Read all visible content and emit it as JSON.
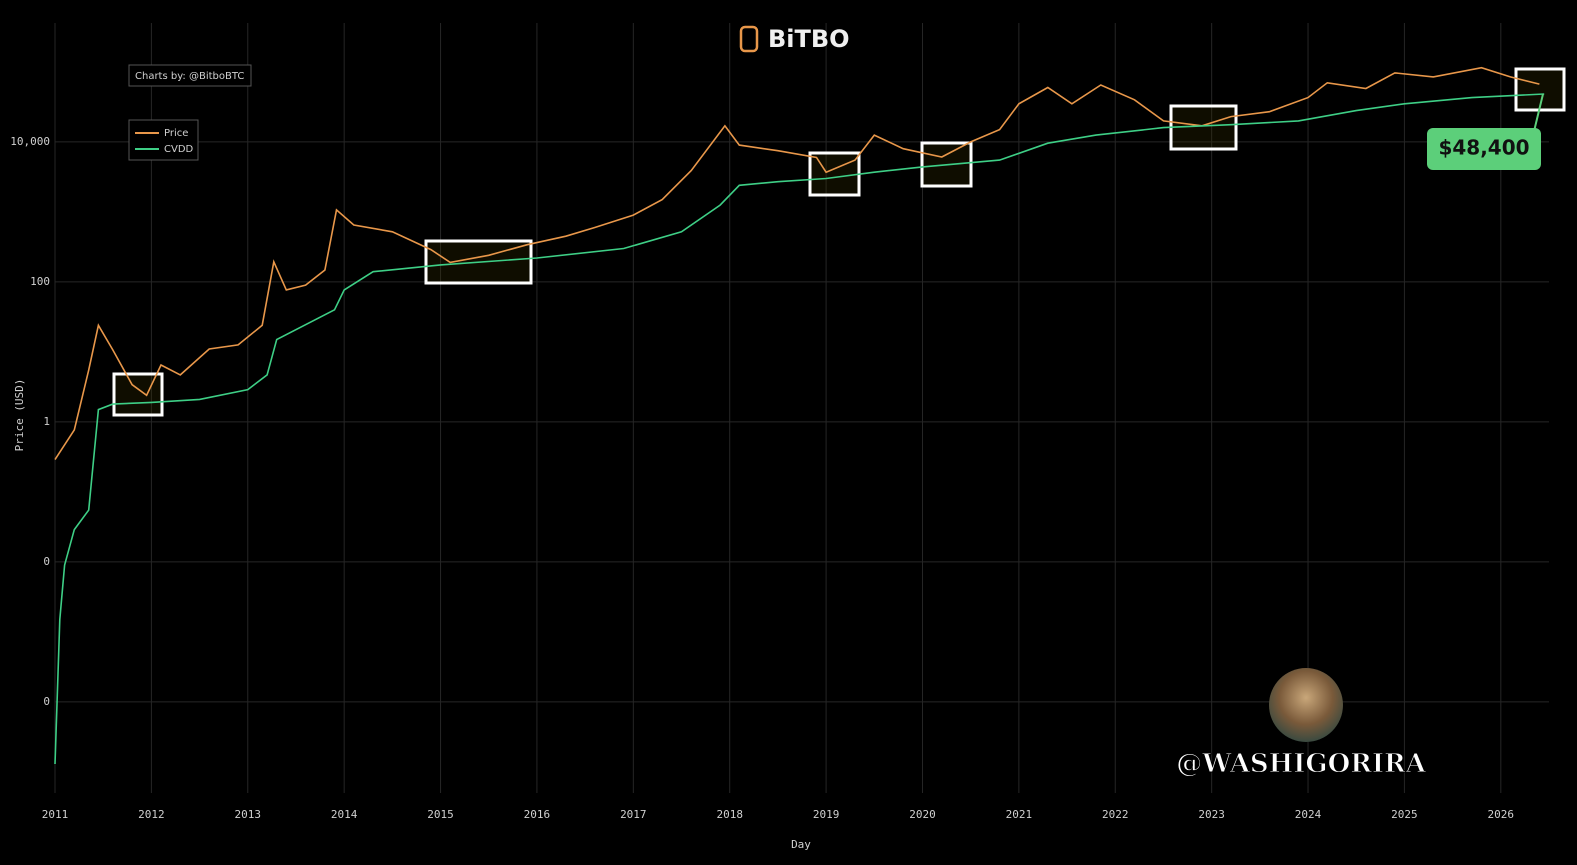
{
  "chart_data": {
    "type": "line",
    "logo": "BiTBO",
    "credit": "Charts by: @BitboBTC",
    "ylabel": "Price (USD)",
    "xlabel": "Day",
    "callout": "$48,400",
    "watermark": "@WASHIGORIRA",
    "yscale": "log",
    "grid": true,
    "legend": "top-left",
    "xlim": [
      2011,
      2026.5
    ],
    "xticks": [
      2011,
      2012,
      2013,
      2014,
      2015,
      2016,
      2017,
      2018,
      2019,
      2020,
      2021,
      2022,
      2023,
      2024,
      2025,
      2026
    ],
    "ylim": [
      5e-06,
      500000
    ],
    "yticks": [
      {
        "value": 0.0001,
        "label": "0"
      },
      {
        "value": 0.01,
        "label": "0"
      },
      1,
      100,
      {
        "value": 10000,
        "label": "10,000"
      }
    ],
    "series": [
      {
        "name": "Price",
        "color": "#e8974a",
        "x": [
          2011.0,
          2011.2,
          2011.35,
          2011.45,
          2011.6,
          2011.8,
          2011.95,
          2012.1,
          2012.3,
          2012.6,
          2012.9,
          2013.15,
          2013.27,
          2013.4,
          2013.6,
          2013.8,
          2013.92,
          2014.1,
          2014.5,
          2014.9,
          2015.1,
          2015.5,
          2015.9,
          2016.3,
          2016.6,
          2017.0,
          2017.3,
          2017.6,
          2017.95,
          2018.1,
          2018.5,
          2018.9,
          2019.0,
          2019.3,
          2019.5,
          2019.8,
          2020.2,
          2020.5,
          2020.8,
          2021.0,
          2021.3,
          2021.55,
          2021.85,
          2022.2,
          2022.5,
          2022.9,
          2023.2,
          2023.6,
          2024.0,
          2024.2,
          2024.6,
          2024.9,
          2025.3,
          2025.8,
          2026.1,
          2026.4
        ],
        "values": [
          0.29,
          0.77,
          5.5,
          24,
          10.7,
          3.4,
          2.4,
          6.5,
          4.7,
          11,
          12.6,
          24,
          194,
          77,
          90,
          148,
          1070,
          650,
          520,
          290,
          190,
          240,
          340,
          450,
          600,
          900,
          1500,
          3900,
          17000,
          9000,
          7500,
          6000,
          3700,
          5500,
          12500,
          8000,
          6100,
          10000,
          15000,
          35000,
          60000,
          35000,
          65000,
          40000,
          20000,
          17000,
          23000,
          27000,
          43000,
          70000,
          58000,
          97000,
          85000,
          115000,
          85000,
          67000
        ]
      },
      {
        "name": "CVDD",
        "color": "#3ecf86",
        "x": [
          2011.0,
          2011.05,
          2011.1,
          2011.2,
          2011.35,
          2011.45,
          2011.6,
          2012.0,
          2012.5,
          2013.0,
          2013.2,
          2013.3,
          2013.9,
          2014.0,
          2014.3,
          2015.0,
          2016.0,
          2016.9,
          2017.5,
          2017.9,
          2018.1,
          2018.5,
          2019.0,
          2019.5,
          2020.0,
          2020.8,
          2021.3,
          2021.8,
          2022.5,
          2023.2,
          2023.9,
          2024.5,
          2025.0,
          2025.7,
          2026.45
        ],
        "values": [
          1.3e-05,
          0.0015,
          0.009,
          0.029,
          0.055,
          1.5,
          1.8,
          1.9,
          2.1,
          2.9,
          4.7,
          15,
          40,
          77,
          140,
          175,
          220,
          300,
          520,
          1250,
          2400,
          2700,
          3000,
          3700,
          4400,
          5500,
          9600,
          12500,
          16000,
          17600,
          20000,
          28000,
          35000,
          43000,
          48400
        ]
      }
    ]
  }
}
